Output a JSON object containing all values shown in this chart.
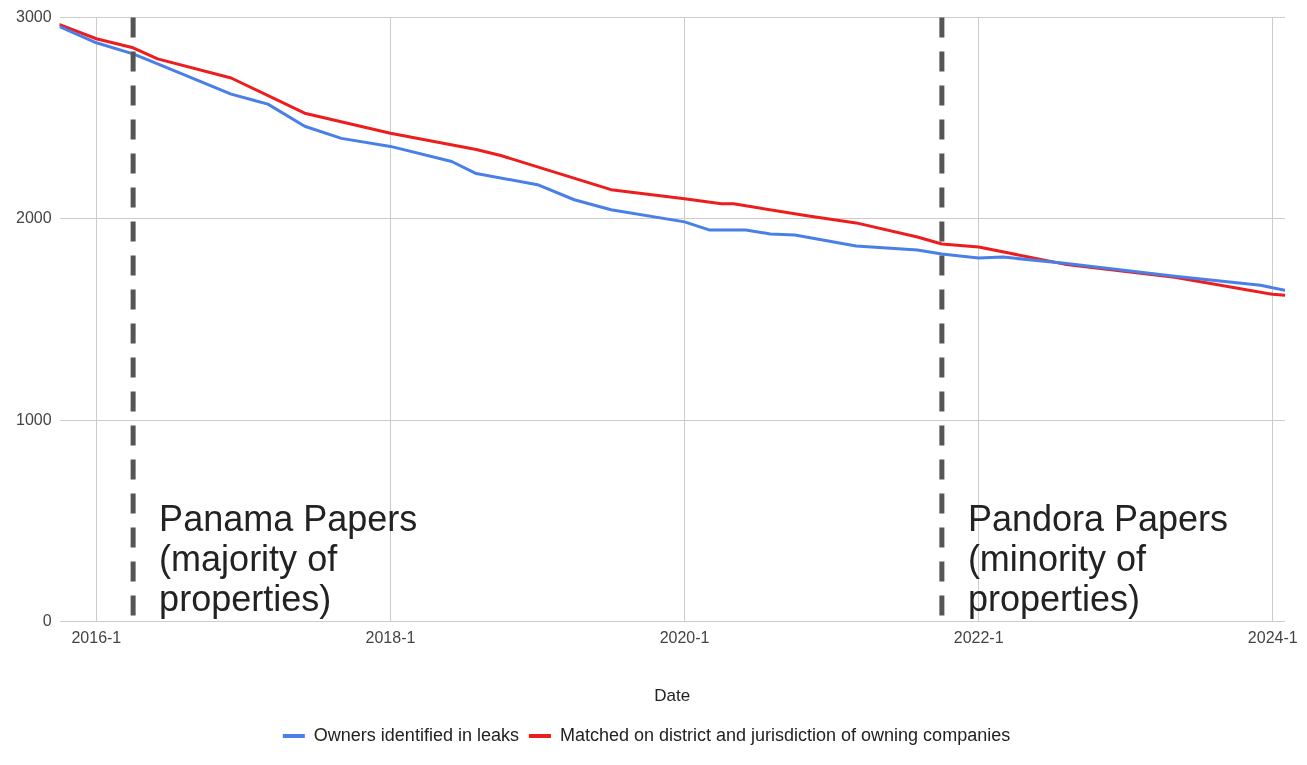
{
  "chart_data": {
    "type": "line",
    "xlabel": "Date",
    "xlim": [
      "2015-10",
      "2024-02"
    ],
    "xticks": [
      {
        "value": "2016-01",
        "label": "2016-1"
      },
      {
        "value": "2018-01",
        "label": "2018-1"
      },
      {
        "value": "2020-01",
        "label": "2020-1"
      },
      {
        "value": "2022-01",
        "label": "2022-1"
      },
      {
        "value": "2024-01",
        "label": "2024-1"
      }
    ],
    "ylim": [
      0,
      3000
    ],
    "yticks": [
      0,
      1000,
      2000,
      3000
    ],
    "grid": true,
    "legend": "bottom",
    "marker": "none",
    "line_style": "solid",
    "series": [
      {
        "name": "Owners identified in leaks",
        "color": "#4a7fe8",
        "x": [
          "2015-10",
          "2016-01",
          "2016-04",
          "2016-06",
          "2016-12",
          "2017-03",
          "2017-06",
          "2017-09",
          "2018-01",
          "2018-06",
          "2018-08",
          "2019-01",
          "2019-04",
          "2019-07",
          "2020-01",
          "2020-03",
          "2020-06",
          "2020-08",
          "2020-10",
          "2021-03",
          "2021-08",
          "2021-10",
          "2022-01",
          "2022-03",
          "2022-08",
          "2023-05",
          "2023-12",
          "2024-02"
        ],
        "values": [
          2955,
          2875,
          2820,
          2770,
          2620,
          2570,
          2460,
          2400,
          2360,
          2285,
          2225,
          2170,
          2095,
          2045,
          1985,
          1945,
          1945,
          1925,
          1920,
          1865,
          1845,
          1825,
          1805,
          1810,
          1780,
          1715,
          1670,
          1645
        ]
      },
      {
        "name": "Matched on district and jurisdiction of owning companies",
        "color": "#ee1d1d",
        "x": [
          "2015-10",
          "2016-01",
          "2016-04",
          "2016-06",
          "2016-12",
          "2017-06",
          "2018-01",
          "2018-08",
          "2018-10",
          "2019-07",
          "2020-01",
          "2020-04",
          "2020-05",
          "2020-11",
          "2021-03",
          "2021-08",
          "2021-10",
          "2022-01",
          "2022-08",
          "2023-05",
          "2024-01",
          "2024-02"
        ],
        "values": [
          2965,
          2895,
          2850,
          2795,
          2700,
          2525,
          2425,
          2345,
          2315,
          2145,
          2100,
          2075,
          2075,
          2015,
          1980,
          1910,
          1875,
          1860,
          1775,
          1710,
          1625,
          1620
        ]
      }
    ],
    "ref_lines": [
      {
        "axis": "x",
        "value": "2016-04",
        "label": "Panama Papers (majority of properties)",
        "color": "#555555",
        "line_style": "dashed"
      },
      {
        "axis": "x",
        "value": "2021-10",
        "label": "Pandora Papers (minority of properties)",
        "color": "#555555",
        "line_style": "dashed"
      }
    ]
  }
}
